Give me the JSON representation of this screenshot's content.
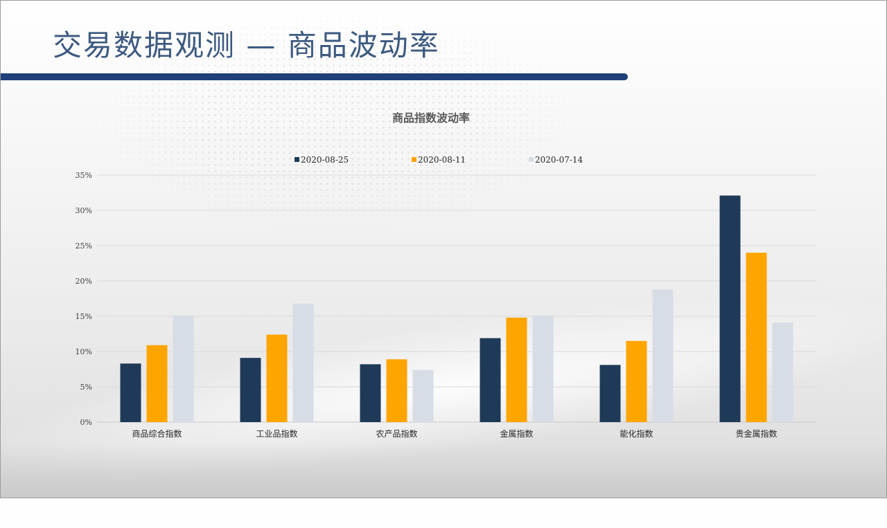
{
  "slide": {
    "title": "交易数据观测 — 商品波动率"
  },
  "colors": {
    "title_text": "#3d5a80",
    "title_bar": "#1f3f7a"
  },
  "chart_data": {
    "type": "bar",
    "title": "商品指数波动率",
    "categories": [
      "商品综合指数",
      "工业品指数",
      "农产品指数",
      "金属指数",
      "能化指数",
      "贵金属指数"
    ],
    "series": [
      {
        "name": "2020-08-25",
        "color": "#1f3a58",
        "values": [
          8.3,
          9.1,
          8.2,
          11.9,
          8.1,
          32.1
        ]
      },
      {
        "name": "2020-08-11",
        "color": "#ffa500",
        "values": [
          10.9,
          12.4,
          8.9,
          14.8,
          11.5,
          24.0
        ]
      },
      {
        "name": "2020-07-14",
        "color": "#d7dde5",
        "values": [
          15.1,
          16.8,
          7.4,
          15.1,
          18.8,
          14.1
        ]
      }
    ],
    "ylim": [
      0,
      35
    ],
    "yticks": [
      0,
      5,
      10,
      15,
      20,
      25,
      30,
      35
    ],
    "ytick_labels": [
      "0%",
      "5%",
      "10%",
      "15%",
      "20%",
      "25%",
      "30%",
      "35%"
    ],
    "grid": true,
    "legend": "top"
  }
}
